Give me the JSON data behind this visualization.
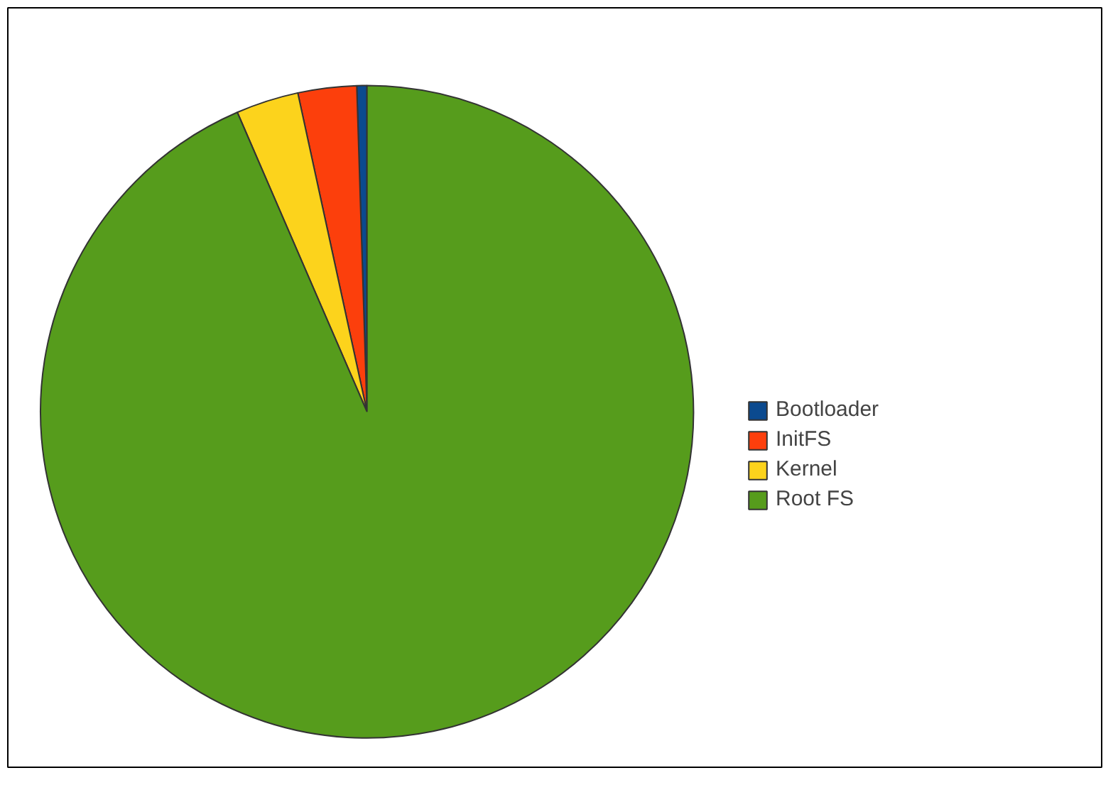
{
  "chart_data": {
    "type": "pie",
    "categories": [
      "Bootloader",
      "InitFS",
      "Kernel",
      "Root FS"
    ],
    "values": [
      0.5,
      2.9,
      3.1,
      93.5
    ],
    "colors": [
      "#0b4a8f",
      "#fc3f0c",
      "#fcd31c",
      "#569c1c"
    ],
    "legend": "right"
  }
}
